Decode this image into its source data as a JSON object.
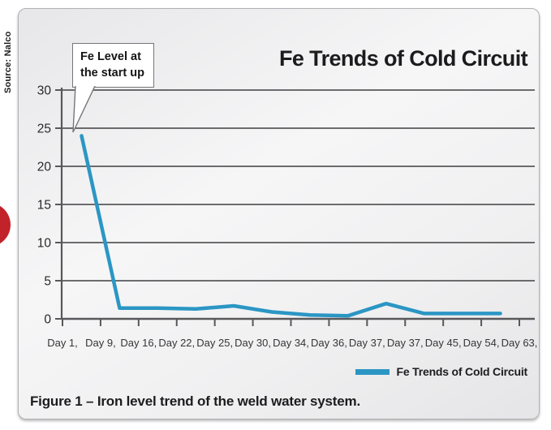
{
  "source_label": "Source: Nalco",
  "chart_title": "Fe Trends of Cold Circuit",
  "callout": {
    "lines": [
      "Fe Level at",
      "the start up"
    ]
  },
  "legend": {
    "label": "Fe Trends of Cold Circuit"
  },
  "caption": "Figure 1 – Iron level trend of the weld water system.",
  "colors": {
    "line": "#2b96c4",
    "grid": "#58585b",
    "axis_text": "#29292b",
    "tick_label_text": "#353537",
    "red_badge": "#c2222a",
    "title_text": "#1c1c1e"
  },
  "chart_data": {
    "type": "line",
    "title": "Fe Trends of Cold Circuit",
    "categories": [
      "Day 1,",
      "Day 9,",
      "Day 16,",
      "Day 22,",
      "Day 25,",
      "Day 30,",
      "Day 34,",
      "Day 36,",
      "Day 37,",
      "Day 37,",
      "Day 45,",
      "Day 54,",
      "Day 63,"
    ],
    "series": [
      {
        "name": "Fe Trends of Cold Circuit",
        "values": [
          24,
          1.4,
          1.4,
          1.3,
          1.7,
          0.9,
          0.5,
          0.4,
          2,
          0.7,
          0.7,
          0.7,
          null
        ]
      }
    ],
    "ylim": [
      0,
      30
    ],
    "yticks": [
      0,
      5,
      10,
      15,
      20,
      25,
      30
    ],
    "grid": "horizontal",
    "legend_position": "bottom-right",
    "annotation": "Fe Level at the start up — callout pointing to first point (Day 1 = 24)"
  }
}
